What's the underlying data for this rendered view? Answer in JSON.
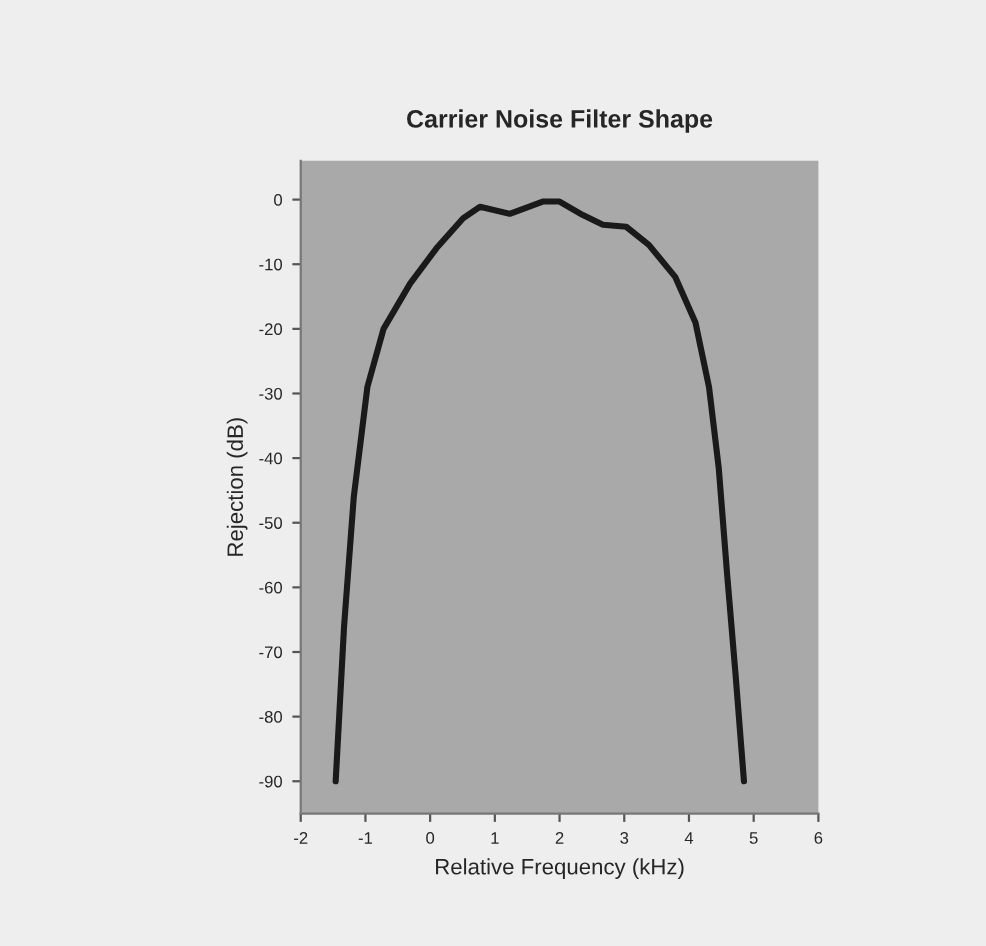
{
  "chart_data": {
    "type": "line",
    "title": "Carrier Noise Filter Shape",
    "xlabel": "Relative Frequency (kHz)",
    "ylabel": "Rejection (dB)",
    "x": [
      -1.46,
      -1.33,
      -1.18,
      -0.97,
      -0.72,
      -0.31,
      0.1,
      0.51,
      0.77,
      1.23,
      1.74,
      2.0,
      2.36,
      2.67,
      3.03,
      3.38,
      3.79,
      4.1,
      4.31,
      4.46,
      4.59,
      4.72,
      4.85
    ],
    "series": [
      {
        "color": "#1a1a1a",
        "values": [
          -90,
          -66,
          -46,
          -29,
          -20,
          -13,
          -7.5,
          -2.9,
          -1.1,
          -2.2,
          -0.3,
          -0.3,
          -2.4,
          -3.9,
          -4.2,
          -7,
          -12,
          -19,
          -29,
          -41.5,
          -58,
          -73.5,
          -90
        ]
      }
    ],
    "xlim": [
      -2,
      6
    ],
    "ylim": [
      -95,
      6
    ],
    "xticks": [
      -2,
      -1,
      0,
      1,
      2,
      3,
      4,
      5,
      6
    ],
    "yticks": [
      0,
      -10,
      -20,
      -30,
      -40,
      -50,
      -60,
      -70,
      -80,
      -90
    ],
    "grid": false,
    "legend": false,
    "marker": "none",
    "line_style": "solid"
  }
}
